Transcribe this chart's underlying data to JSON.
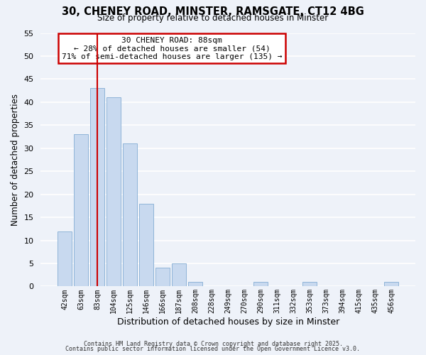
{
  "title_line1": "30, CHENEY ROAD, MINSTER, RAMSGATE, CT12 4BG",
  "title_line2": "Size of property relative to detached houses in Minster",
  "xlabel": "Distribution of detached houses by size in Minster",
  "ylabel": "Number of detached properties",
  "bar_labels": [
    "42sqm",
    "63sqm",
    "83sqm",
    "104sqm",
    "125sqm",
    "146sqm",
    "166sqm",
    "187sqm",
    "208sqm",
    "228sqm",
    "249sqm",
    "270sqm",
    "290sqm",
    "311sqm",
    "332sqm",
    "353sqm",
    "373sqm",
    "394sqm",
    "415sqm",
    "435sqm",
    "456sqm"
  ],
  "bar_values": [
    12,
    33,
    43,
    41,
    31,
    18,
    4,
    5,
    1,
    0,
    0,
    0,
    1,
    0,
    0,
    1,
    0,
    0,
    0,
    0,
    1
  ],
  "bar_color": "#c8d9ef",
  "bar_edge_color": "#8fb4d8",
  "vline_index": 2,
  "vline_color": "#cc0000",
  "ylim": [
    0,
    55
  ],
  "yticks": [
    0,
    5,
    10,
    15,
    20,
    25,
    30,
    35,
    40,
    45,
    50,
    55
  ],
  "annotation_title": "30 CHENEY ROAD: 88sqm",
  "annotation_line2": "← 28% of detached houses are smaller (54)",
  "annotation_line3": "71% of semi-detached houses are larger (135) →",
  "footer_line1": "Contains HM Land Registry data © Crown copyright and database right 2025.",
  "footer_line2": "Contains public sector information licensed under the Open Government Licence v3.0.",
  "bg_color": "#eef2f9",
  "plot_bg_color": "#eef2f9",
  "grid_color": "#ffffff"
}
